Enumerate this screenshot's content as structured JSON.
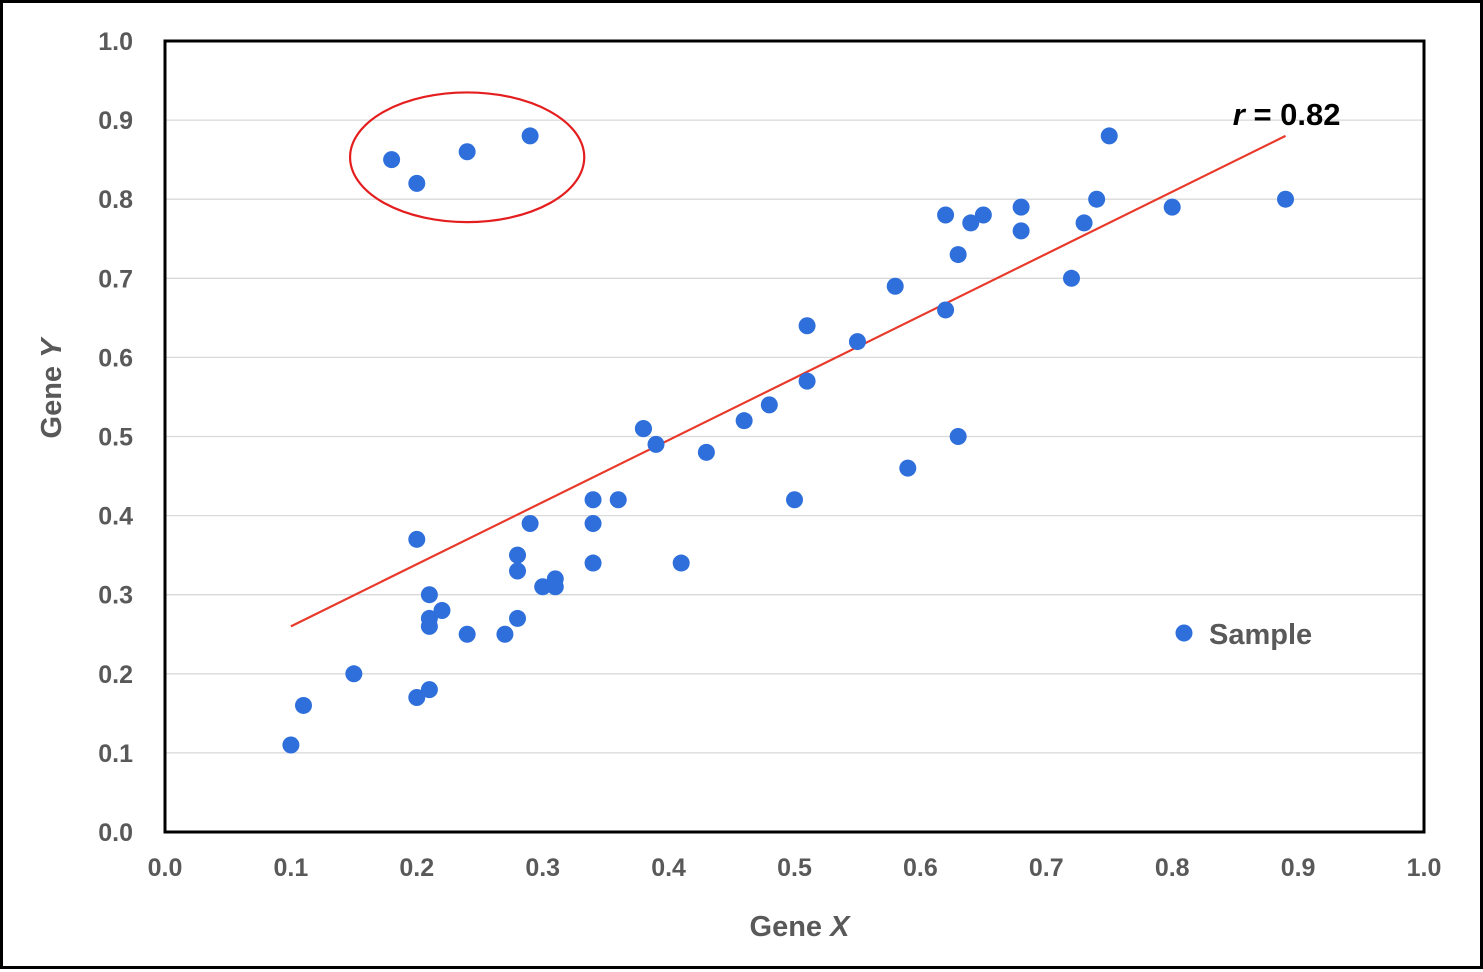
{
  "chart_data": {
    "type": "scatter",
    "xlabel": {
      "prefix": "Gene ",
      "variable": "X"
    },
    "ylabel": {
      "prefix": "Gene ",
      "variable": "Y"
    },
    "xlim": [
      0.0,
      1.0
    ],
    "ylim": [
      0.0,
      1.0
    ],
    "x_ticks": [
      "0.0",
      "0.1",
      "0.2",
      "0.3",
      "0.4",
      "0.5",
      "0.6",
      "0.7",
      "0.8",
      "0.9",
      "1.0"
    ],
    "y_ticks": [
      "0.0",
      "0.1",
      "0.2",
      "0.3",
      "0.4",
      "0.5",
      "0.6",
      "0.7",
      "0.8",
      "0.9",
      "1.0"
    ],
    "grid": "horizontal",
    "legend": {
      "position": "bottom-right",
      "entries": [
        "Sample"
      ]
    },
    "series": [
      {
        "name": "Sample",
        "color": "#2E6FDB",
        "points": [
          [
            0.1,
            0.11
          ],
          [
            0.11,
            0.16
          ],
          [
            0.15,
            0.2
          ],
          [
            0.18,
            0.85
          ],
          [
            0.2,
            0.17
          ],
          [
            0.2,
            0.82
          ],
          [
            0.2,
            0.37
          ],
          [
            0.21,
            0.27
          ],
          [
            0.21,
            0.26
          ],
          [
            0.21,
            0.18
          ],
          [
            0.21,
            0.3
          ],
          [
            0.22,
            0.28
          ],
          [
            0.24,
            0.25
          ],
          [
            0.24,
            0.86
          ],
          [
            0.27,
            0.25
          ],
          [
            0.28,
            0.33
          ],
          [
            0.28,
            0.27
          ],
          [
            0.28,
            0.35
          ],
          [
            0.29,
            0.39
          ],
          [
            0.29,
            0.88
          ],
          [
            0.3,
            0.31
          ],
          [
            0.31,
            0.32
          ],
          [
            0.31,
            0.31
          ],
          [
            0.34,
            0.34
          ],
          [
            0.34,
            0.42
          ],
          [
            0.34,
            0.39
          ],
          [
            0.36,
            0.42
          ],
          [
            0.38,
            0.51
          ],
          [
            0.38,
            0.51
          ],
          [
            0.39,
            0.49
          ],
          [
            0.41,
            0.34
          ],
          [
            0.43,
            0.48
          ],
          [
            0.46,
            0.52
          ],
          [
            0.48,
            0.54
          ],
          [
            0.5,
            0.42
          ],
          [
            0.51,
            0.64
          ],
          [
            0.51,
            0.57
          ],
          [
            0.55,
            0.62
          ],
          [
            0.58,
            0.69
          ],
          [
            0.59,
            0.46
          ],
          [
            0.62,
            0.78
          ],
          [
            0.62,
            0.66
          ],
          [
            0.63,
            0.5
          ],
          [
            0.63,
            0.73
          ],
          [
            0.64,
            0.77
          ],
          [
            0.65,
            0.78
          ],
          [
            0.68,
            0.79
          ],
          [
            0.68,
            0.76
          ],
          [
            0.72,
            0.7
          ],
          [
            0.73,
            0.77
          ],
          [
            0.74,
            0.8
          ],
          [
            0.75,
            0.88
          ],
          [
            0.8,
            0.79
          ],
          [
            0.89,
            0.8
          ]
        ]
      }
    ],
    "trendline": {
      "color": "#E8392A",
      "x": [
        0.1,
        0.89
      ],
      "y": [
        0.26,
        0.88
      ]
    },
    "annotations": [
      {
        "type": "text",
        "variable": "r",
        "rest": " = 0.82",
        "x": 0.89,
        "y": 0.91
      },
      {
        "type": "ellipse",
        "color": "#E41E1E",
        "cx": 0.24,
        "cy": 0.853,
        "rx": 0.093,
        "ry": 0.082
      }
    ]
  }
}
